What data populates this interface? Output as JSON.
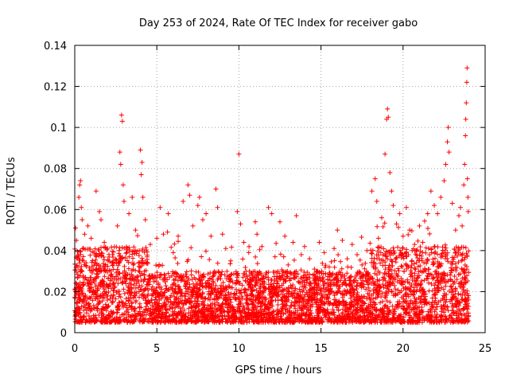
{
  "chart_data": {
    "type": "scatter",
    "title": "Day 253 of 2024, Rate Of TEC Index for receiver gabo",
    "xlabel": "GPS time / hours",
    "ylabel": "ROTI / TECUs",
    "xlim": [
      0,
      25
    ],
    "ylim": [
      0,
      0.14
    ],
    "xticks": [
      0,
      5,
      10,
      15,
      20,
      25
    ],
    "xtick_labels": [
      "0",
      "5",
      "10",
      "15",
      "20",
      "25"
    ],
    "yticks": [
      0,
      0.02,
      0.04,
      0.06,
      0.08,
      0.1,
      0.12,
      0.14
    ],
    "ytick_labels": [
      "0",
      "0.02",
      "0.04",
      "0.06",
      "0.08",
      "0.1",
      "0.12",
      "0.14"
    ],
    "grid": true,
    "marker": "plus",
    "color": "#ff0000",
    "series": [
      {
        "name": "ROTI",
        "points": [
          [
            0.05,
            0.051
          ],
          [
            0.1,
            0.045
          ],
          [
            0.25,
            0.066
          ],
          [
            0.3,
            0.072
          ],
          [
            0.35,
            0.074
          ],
          [
            0.4,
            0.061
          ],
          [
            0.45,
            0.055
          ],
          [
            0.6,
            0.048
          ],
          [
            0.8,
            0.052
          ],
          [
            1.0,
            0.046
          ],
          [
            1.3,
            0.069
          ],
          [
            1.5,
            0.059
          ],
          [
            1.6,
            0.055
          ],
          [
            1.8,
            0.044
          ],
          [
            2.0,
            0.041
          ],
          [
            2.3,
            0.038
          ],
          [
            2.6,
            0.052
          ],
          [
            2.75,
            0.088
          ],
          [
            2.8,
            0.082
          ],
          [
            2.85,
            0.106
          ],
          [
            2.9,
            0.103
          ],
          [
            2.95,
            0.072
          ],
          [
            3.0,
            0.064
          ],
          [
            3.3,
            0.058
          ],
          [
            3.5,
            0.066
          ],
          [
            3.7,
            0.05
          ],
          [
            4.0,
            0.089
          ],
          [
            4.05,
            0.077
          ],
          [
            4.1,
            0.083
          ],
          [
            4.15,
            0.066
          ],
          [
            4.3,
            0.055
          ],
          [
            4.6,
            0.043
          ],
          [
            5.0,
            0.046
          ],
          [
            5.2,
            0.061
          ],
          [
            5.4,
            0.048
          ],
          [
            5.7,
            0.058
          ],
          [
            6.0,
            0.039
          ],
          [
            6.3,
            0.047
          ],
          [
            6.6,
            0.064
          ],
          [
            6.9,
            0.072
          ],
          [
            7.0,
            0.067
          ],
          [
            7.2,
            0.052
          ],
          [
            7.5,
            0.062
          ],
          [
            7.6,
            0.066
          ],
          [
            7.8,
            0.055
          ],
          [
            8.0,
            0.058
          ],
          [
            8.3,
            0.047
          ],
          [
            8.6,
            0.07
          ],
          [
            8.7,
            0.061
          ],
          [
            9.0,
            0.048
          ],
          [
            9.2,
            0.041
          ],
          [
            9.5,
            0.035
          ],
          [
            9.9,
            0.059
          ],
          [
            10.0,
            0.087
          ],
          [
            10.1,
            0.053
          ],
          [
            10.3,
            0.044
          ],
          [
            10.6,
            0.039
          ],
          [
            11.0,
            0.054
          ],
          [
            11.1,
            0.048
          ],
          [
            11.4,
            0.042
          ],
          [
            11.8,
            0.061
          ],
          [
            12.0,
            0.058
          ],
          [
            12.2,
            0.037
          ],
          [
            12.5,
            0.054
          ],
          [
            12.8,
            0.047
          ],
          [
            13.0,
            0.033
          ],
          [
            13.3,
            0.044
          ],
          [
            13.5,
            0.057
          ],
          [
            13.8,
            0.038
          ],
          [
            14.0,
            0.042
          ],
          [
            14.3,
            0.036
          ],
          [
            14.6,
            0.031
          ],
          [
            14.9,
            0.044
          ],
          [
            15.2,
            0.039
          ],
          [
            15.5,
            0.032
          ],
          [
            15.8,
            0.041
          ],
          [
            16.0,
            0.05
          ],
          [
            16.3,
            0.045
          ],
          [
            16.6,
            0.036
          ],
          [
            16.9,
            0.043
          ],
          [
            17.2,
            0.038
          ],
          [
            17.5,
            0.033
          ],
          [
            17.8,
            0.04
          ],
          [
            18.1,
            0.069
          ],
          [
            18.3,
            0.075
          ],
          [
            18.4,
            0.064
          ],
          [
            18.5,
            0.046
          ],
          [
            18.7,
            0.056
          ],
          [
            18.9,
            0.087
          ],
          [
            19.0,
            0.104
          ],
          [
            19.05,
            0.109
          ],
          [
            19.1,
            0.105
          ],
          [
            19.2,
            0.078
          ],
          [
            19.3,
            0.069
          ],
          [
            19.4,
            0.062
          ],
          [
            19.6,
            0.053
          ],
          [
            19.8,
            0.058
          ],
          [
            20.0,
            0.047
          ],
          [
            20.2,
            0.061
          ],
          [
            20.4,
            0.05
          ],
          [
            20.7,
            0.043
          ],
          [
            21.0,
            0.052
          ],
          [
            21.2,
            0.044
          ],
          [
            21.5,
            0.058
          ],
          [
            21.7,
            0.069
          ],
          [
            21.9,
            0.062
          ],
          [
            22.1,
            0.058
          ],
          [
            22.3,
            0.066
          ],
          [
            22.5,
            0.074
          ],
          [
            22.6,
            0.082
          ],
          [
            22.7,
            0.093
          ],
          [
            22.75,
            0.1
          ],
          [
            22.8,
            0.088
          ],
          [
            23.0,
            0.063
          ],
          [
            23.2,
            0.05
          ],
          [
            23.4,
            0.057
          ],
          [
            23.5,
            0.061
          ],
          [
            23.6,
            0.052
          ],
          [
            23.7,
            0.072
          ],
          [
            23.75,
            0.082
          ],
          [
            23.8,
            0.096
          ],
          [
            23.82,
            0.104
          ],
          [
            23.85,
            0.112
          ],
          [
            23.88,
            0.122
          ],
          [
            23.9,
            0.129
          ],
          [
            23.92,
            0.075
          ],
          [
            23.95,
            0.066
          ],
          [
            23.97,
            0.059
          ]
        ],
        "dense_band": {
          "x_range": [
            0,
            24
          ],
          "typical_min": 0.005,
          "typical_max": 0.03,
          "peak_regions": [
            [
              0,
              4.5
            ],
            [
              18,
              24
            ]
          ]
        }
      }
    ]
  }
}
